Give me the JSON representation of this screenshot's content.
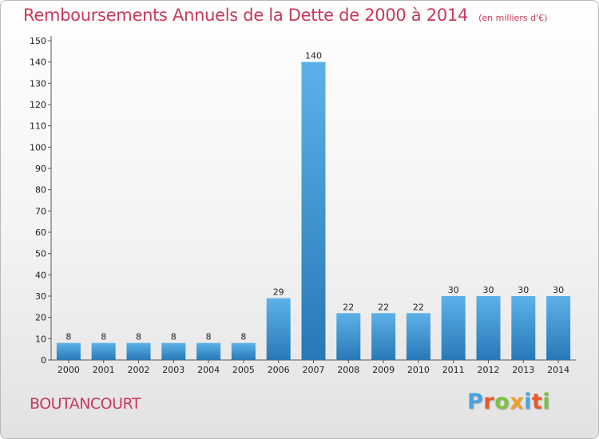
{
  "header": {
    "title": "Remboursements Annuels de la Dette de 2000 à 2014",
    "unit": "(en milliers d'€)"
  },
  "footer": {
    "commune": "BOUTANCOURT",
    "logo_text": "Proxiti"
  },
  "colors": {
    "title": "#c8385a",
    "bar_light": "#5aaee6",
    "bar_dark": "#2a7ab8",
    "logo": [
      "#4aa3df",
      "#e85a2a",
      "#7cc242",
      "#f0a030",
      "#4aa3df",
      "#e85a2a",
      "#7cc242"
    ]
  },
  "chart_data": {
    "type": "bar",
    "categories": [
      "2000",
      "2001",
      "2002",
      "2003",
      "2004",
      "2005",
      "2006",
      "2007",
      "2008",
      "2009",
      "2010",
      "2011",
      "2012",
      "2013",
      "2014"
    ],
    "values": [
      8,
      8,
      8,
      8,
      8,
      8,
      29,
      140,
      22,
      22,
      22,
      30,
      30,
      30,
      30
    ],
    "title": "Remboursements Annuels de la Dette de 2000 à 2014",
    "xlabel": "",
    "ylabel": "",
    "ylim": [
      0,
      150
    ],
    "yticks": [
      0,
      10,
      20,
      30,
      40,
      50,
      60,
      70,
      80,
      90,
      100,
      110,
      120,
      130,
      140,
      150
    ],
    "grid": false,
    "data_labels": true
  }
}
